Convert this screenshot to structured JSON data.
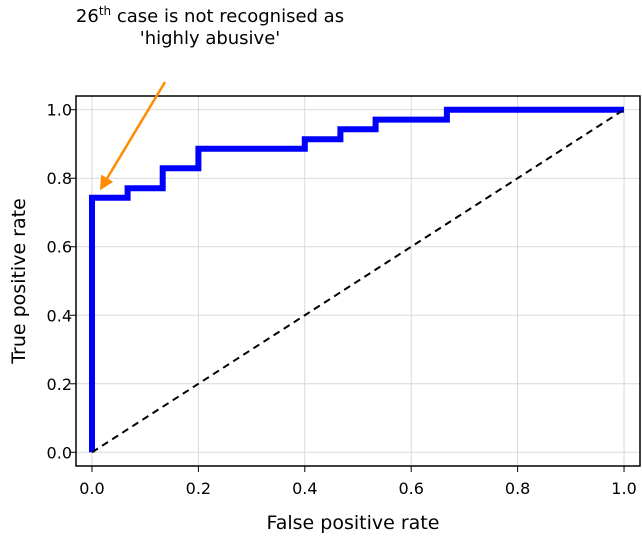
{
  "chart_data": {
    "type": "line",
    "xlabel": "False positive rate",
    "ylabel": "True positive rate",
    "xlim": [
      -0.03,
      1.03
    ],
    "ylim": [
      -0.04,
      1.04
    ],
    "grid": true,
    "x_ticks": [
      "0.0",
      "0.2",
      "0.4",
      "0.6",
      "0.8",
      "1.0"
    ],
    "y_ticks": [
      "0.0",
      "0.2",
      "0.4",
      "0.6",
      "0.8",
      "1.0"
    ],
    "colors": {
      "roc": "#0000ff",
      "diagonal": "#000000",
      "arrow": "#ff8c00",
      "grid": "#d9d9d9"
    },
    "series": [
      {
        "style": "solid",
        "x": [
          0.0,
          0.0,
          0.067,
          0.067,
          0.133,
          0.133,
          0.2,
          0.2,
          0.4,
          0.4,
          0.467,
          0.467,
          0.533,
          0.533,
          0.667,
          0.667,
          1.0
        ],
        "y": [
          0.0,
          0.743,
          0.743,
          0.771,
          0.771,
          0.829,
          0.829,
          0.886,
          0.886,
          0.914,
          0.914,
          0.943,
          0.943,
          0.971,
          0.971,
          1.0,
          1.0
        ]
      },
      {
        "style": "dashed",
        "x": [
          0.0,
          1.0
        ],
        "y": [
          0.0,
          1.0
        ]
      }
    ],
    "annotation": {
      "text_base": "26",
      "text_sup": "th",
      "text_rest": " case is not recognised as",
      "text_line2": "'highly abusive'",
      "point": [
        0.015,
        0.765
      ]
    }
  }
}
